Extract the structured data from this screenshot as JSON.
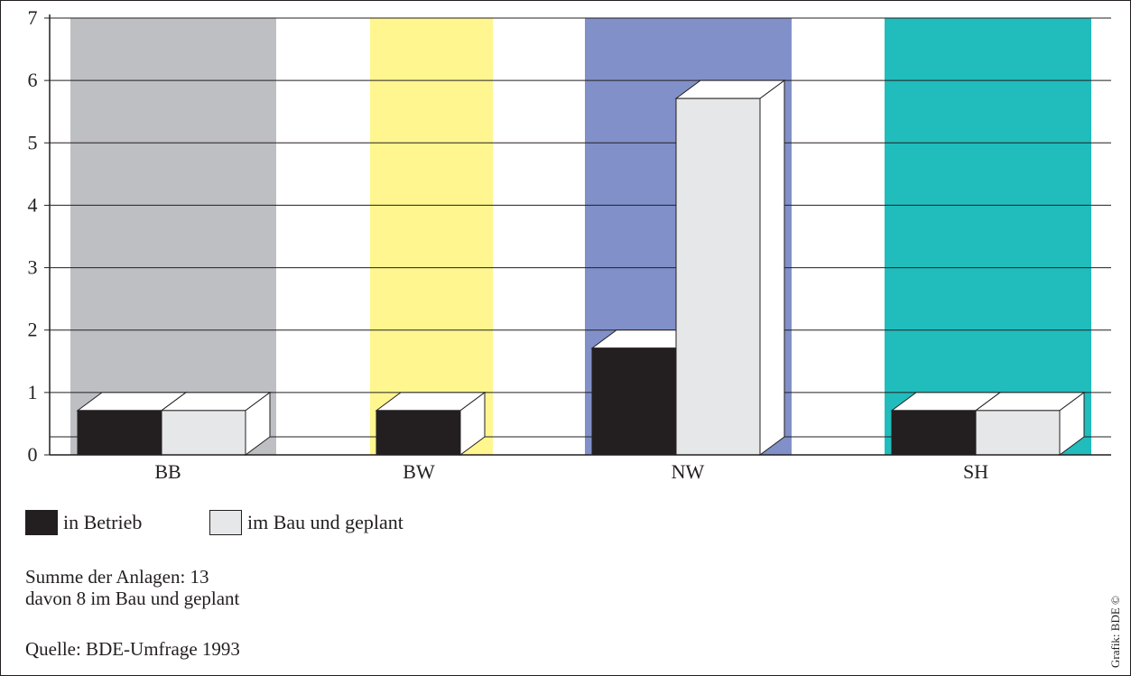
{
  "chart_data": {
    "type": "bar",
    "categories": [
      "BB",
      "BW",
      "NW",
      "SH"
    ],
    "series": [
      {
        "name": "in Betrieb",
        "values": [
          1,
          1,
          2,
          1
        ]
      },
      {
        "name": "im Bau und geplant",
        "values": [
          1,
          0,
          6,
          1
        ]
      }
    ],
    "yticks": [
      "0",
      "1",
      "2",
      "3",
      "4",
      "5",
      "6",
      "7"
    ],
    "ylim": [
      0,
      7
    ],
    "grid": true,
    "three_d": true,
    "legend_position": "bottom-left",
    "band_colors": [
      "#bebfc2",
      "#fff68f",
      "#8190c8",
      "#21bdbd"
    ],
    "series_colors": [
      "#231f20",
      "#e6e7e8"
    ]
  },
  "notes": {
    "line1": "Summe der Anlagen: 13",
    "line2": "davon 8 im Bau und geplant",
    "source": "Quelle: BDE-Umfrage 1993"
  },
  "credit": "Grafik: BDE ©"
}
